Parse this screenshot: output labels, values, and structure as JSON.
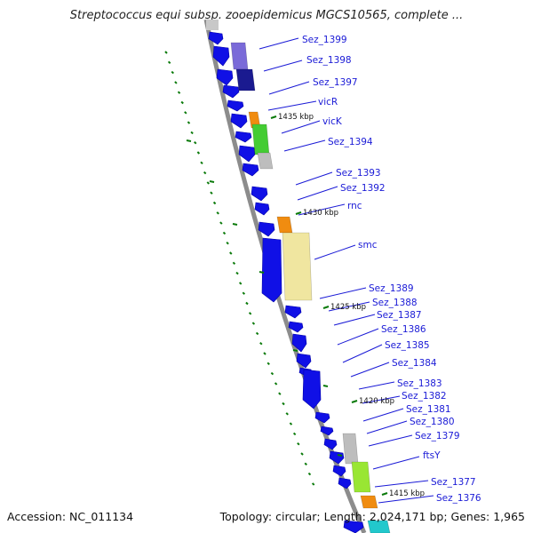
{
  "header": {
    "title": "Streptococcus equi subsp. zooepidemicus MGCS10565, complete ..."
  },
  "footer": {
    "accession": "Accession: NC_011134",
    "topology": "Topology: circular; Length: 2,024,171 bp; Genes: 1,965"
  },
  "colors": {
    "gene_blue": "#1010e6",
    "label_blue": "#1a1ad6",
    "backbone": "#8c8c8c",
    "tick_green": "#0a7a0a"
  },
  "kbp_markers": [
    "1435 kbp",
    "1430 kbp",
    "1425 kbp",
    "1420 kbp",
    "1415 kbp"
  ],
  "genes": [
    "Sez_1399",
    "Sez_1398",
    "Sez_1397",
    "vicR",
    "vicK",
    "Sez_1394",
    "Sez_1393",
    "Sez_1392",
    "rnc",
    "smc",
    "Sez_1389",
    "Sez_1388",
    "Sez_1387",
    "Sez_1386",
    "Sez_1385",
    "Sez_1384",
    "Sez_1383",
    "Sez_1382",
    "Sez_1381",
    "Sez_1380",
    "Sez_1379",
    "ftsY",
    "Sez_1377",
    "Sez_1376"
  ]
}
